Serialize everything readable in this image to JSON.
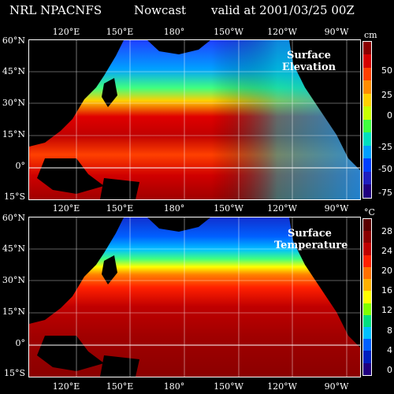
{
  "header": {
    "org": "NRL NPACNFS",
    "mode": "Nowcast",
    "valid": "valid at 2001/03/25 00Z"
  },
  "axes": {
    "lat_labels": [
      "60°N",
      "45°N",
      "30°N",
      "15°N",
      "0°",
      "15°S"
    ],
    "lon_labels": [
      "120°E",
      "150°E",
      "180°",
      "150°W",
      "120°W",
      "90°W"
    ]
  },
  "panels": [
    {
      "title_line1": "Surface",
      "title_line2": "Elevation",
      "unit": "cm",
      "scale_labels": [
        "50",
        "25",
        "0",
        "-25",
        "-50",
        "-75"
      ],
      "colors": [
        "#8b0000",
        "#d40000",
        "#ff4000",
        "#ff8c00",
        "#ffd000",
        "#c8ff00",
        "#40ff40",
        "#00e0c0",
        "#00a0ff",
        "#0040ff",
        "#2020c0",
        "#200080"
      ]
    },
    {
      "title_line1": "Surface",
      "title_line2": "Temperature",
      "unit": "°C",
      "scale_labels": [
        "28",
        "24",
        "20",
        "16",
        "12",
        "8",
        "4",
        "0"
      ],
      "colors": [
        "#5a0000",
        "#8b0000",
        "#c00000",
        "#ff2000",
        "#ff7000",
        "#ffb000",
        "#ffff00",
        "#80ff00",
        "#00e080",
        "#00c0ff",
        "#0060ff",
        "#0020c0",
        "#200080"
      ]
    }
  ]
}
